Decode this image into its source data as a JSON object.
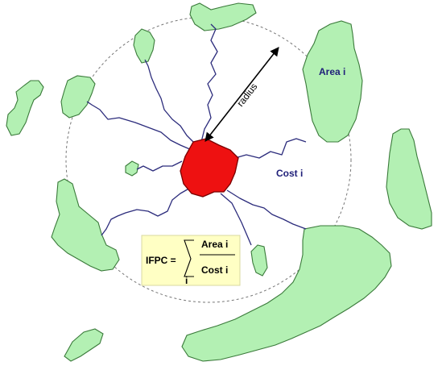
{
  "labels": {
    "area": "Area i",
    "cost": "Cost i",
    "radius": "radius"
  },
  "formula": {
    "lhs": "IFPC =",
    "numerator": "Area i",
    "denominator": "Cost i",
    "index": "i"
  },
  "colors": {
    "habitat_patch": "#b3f0b3",
    "focal_patch": "#ee1111",
    "cost_path": "#2c2c7c",
    "formula_background": "#ffffc4"
  }
}
